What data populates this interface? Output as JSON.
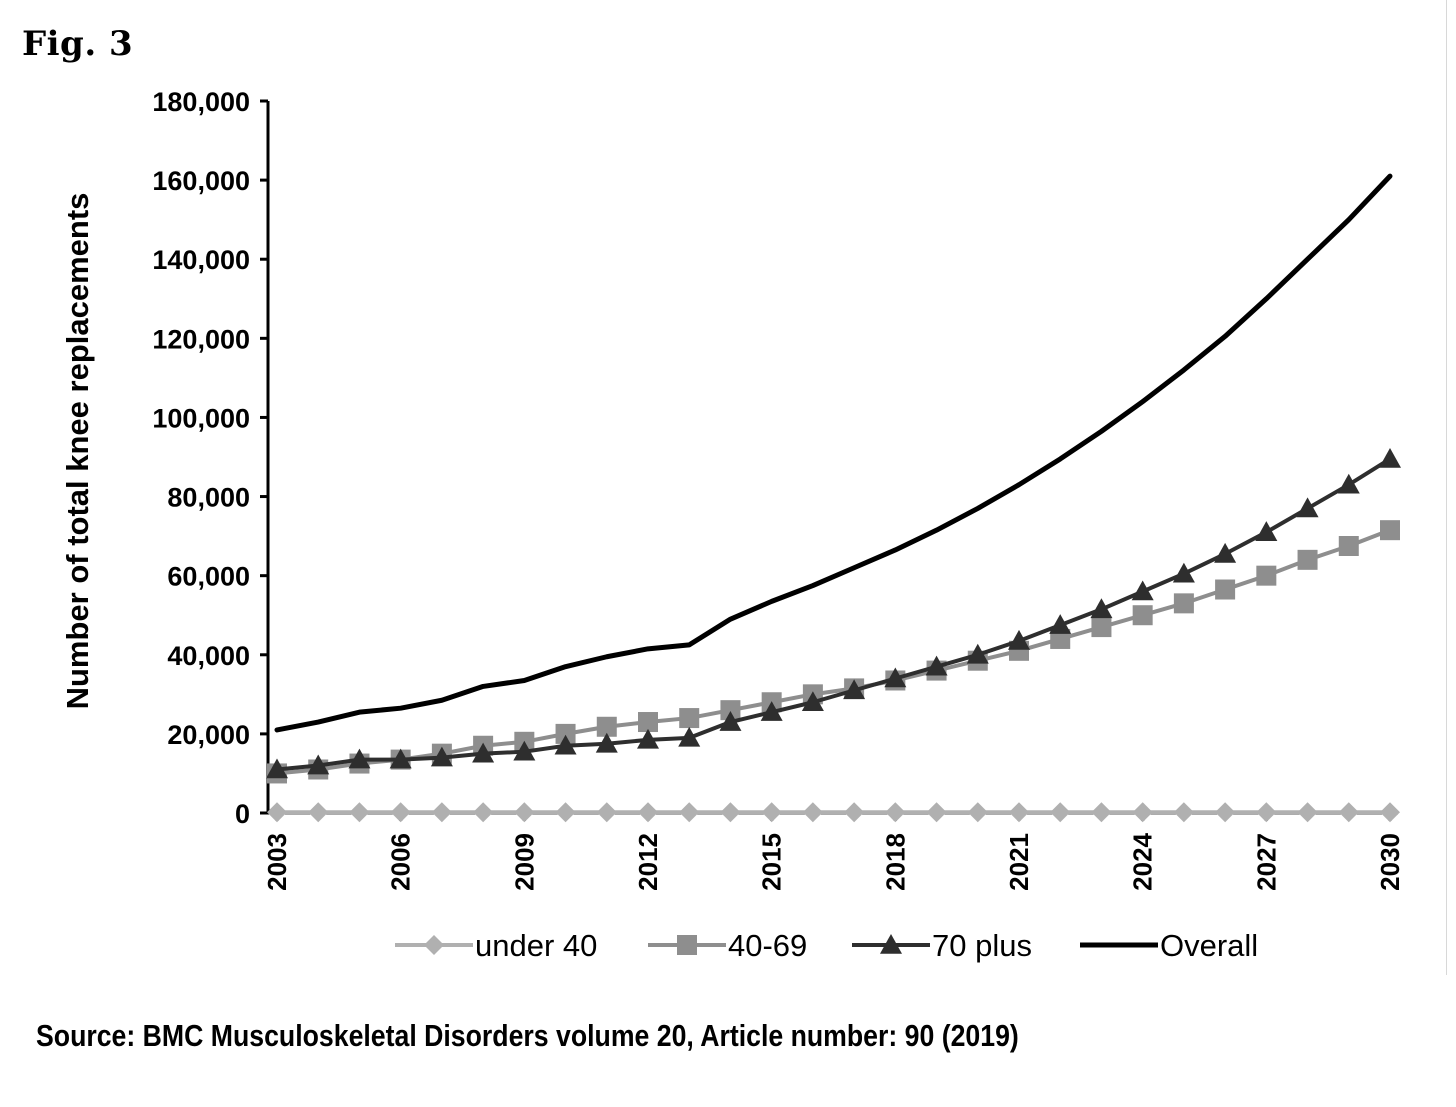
{
  "figure_label": "Fig. 3",
  "source": "Source: BMC Musculoskeletal Disorders volume 20, Article number: 90 (2019)",
  "chart_data": {
    "type": "line",
    "title": "",
    "xlabel": "",
    "ylabel": "Number of total knee replacements",
    "ylim": [
      0,
      180000
    ],
    "y_ticks": [
      "0",
      "20,000",
      "40,000",
      "60,000",
      "80,000",
      "100,000",
      "120,000",
      "140,000",
      "160,000",
      "180,000"
    ],
    "x_tick_labels": [
      "2003",
      "2006",
      "2009",
      "2012",
      "2015",
      "2018",
      "2021",
      "2024",
      "2027",
      "2030"
    ],
    "x": [
      2003,
      2004,
      2005,
      2006,
      2007,
      2008,
      2009,
      2010,
      2011,
      2012,
      2013,
      2014,
      2015,
      2016,
      2017,
      2018,
      2019,
      2020,
      2021,
      2022,
      2023,
      2024,
      2025,
      2026,
      2027,
      2028,
      2029,
      2030
    ],
    "grid": false,
    "legend_position": "bottom",
    "series": [
      {
        "name": "under 40",
        "marker": "diamond",
        "color": "#b0b0b0",
        "values": [
          200,
          200,
          200,
          200,
          200,
          200,
          200,
          200,
          200,
          200,
          200,
          200,
          200,
          200,
          200,
          200,
          200,
          200,
          200,
          200,
          200,
          200,
          200,
          200,
          200,
          200,
          200,
          200
        ]
      },
      {
        "name": "40-69",
        "marker": "square",
        "color": "#8e8e8e",
        "values": [
          10000,
          11000,
          12500,
          13500,
          15000,
          17000,
          18000,
          20000,
          21800,
          23000,
          24000,
          26000,
          28000,
          30000,
          31500,
          33500,
          36000,
          38500,
          41000,
          44000,
          47000,
          50000,
          53000,
          56500,
          60000,
          64000,
          67500,
          71500
        ]
      },
      {
        "name": "70 plus",
        "marker": "triangle",
        "color": "#2e2e2e",
        "values": [
          11000,
          12000,
          13500,
          13500,
          14000,
          15000,
          15500,
          17000,
          17500,
          18500,
          19000,
          23000,
          25500,
          28000,
          31000,
          34000,
          37000,
          40000,
          43500,
          47500,
          51500,
          56000,
          60500,
          65500,
          71000,
          77000,
          83000,
          89500
        ]
      },
      {
        "name": "Overall",
        "marker": "none",
        "color": "#000000",
        "values": [
          21000,
          23000,
          25500,
          26500,
          28500,
          32000,
          33500,
          37000,
          39500,
          41500,
          42500,
          49000,
          53500,
          57500,
          62000,
          66500,
          71500,
          77000,
          83000,
          89500,
          96500,
          104000,
          112000,
          120500,
          130000,
          140000,
          150000,
          161000
        ]
      }
    ]
  }
}
